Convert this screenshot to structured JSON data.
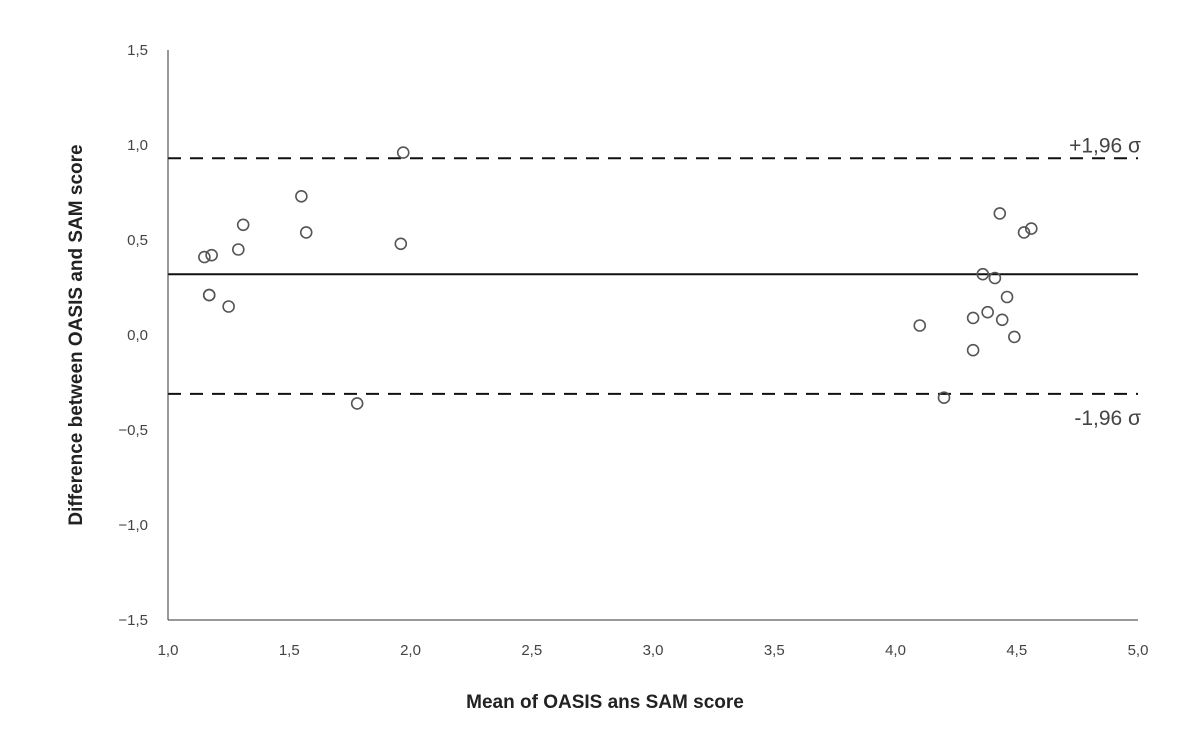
{
  "chart_data": {
    "type": "scatter",
    "xlabel": "Mean of OASIS ans SAM score",
    "ylabel": "Difference between OASIS and SAM score",
    "xlim": [
      1.0,
      5.0
    ],
    "ylim": [
      -1.5,
      1.5
    ],
    "xticks": [
      1.0,
      1.5,
      2.0,
      2.5,
      3.0,
      3.5,
      4.0,
      4.5,
      5.0
    ],
    "yticks": [
      -1.5,
      -1.0,
      -0.5,
      0.0,
      0.5,
      1.0,
      1.5
    ],
    "decimal_separator": ",",
    "grid": false,
    "legend": "none",
    "reference_lines": [
      {
        "label": "+1,96 σ",
        "y": 0.93,
        "style": "dashed"
      },
      {
        "label": "",
        "y": 0.32,
        "style": "solid"
      },
      {
        "label": "-1,96 σ",
        "y": -0.31,
        "style": "dashed"
      }
    ],
    "points": [
      {
        "x": 1.15,
        "y": 0.41
      },
      {
        "x": 1.18,
        "y": 0.42
      },
      {
        "x": 1.17,
        "y": 0.21
      },
      {
        "x": 1.17,
        "y": 0.21
      },
      {
        "x": 1.25,
        "y": 0.15
      },
      {
        "x": 1.29,
        "y": 0.45
      },
      {
        "x": 1.31,
        "y": 0.58
      },
      {
        "x": 1.55,
        "y": 0.73
      },
      {
        "x": 1.57,
        "y": 0.54
      },
      {
        "x": 1.78,
        "y": -0.36
      },
      {
        "x": 1.96,
        "y": 0.48
      },
      {
        "x": 1.97,
        "y": 0.96
      },
      {
        "x": 4.1,
        "y": 0.05
      },
      {
        "x": 4.2,
        "y": -0.33
      },
      {
        "x": 4.32,
        "y": -0.08
      },
      {
        "x": 4.32,
        "y": 0.09
      },
      {
        "x": 4.36,
        "y": 0.32
      },
      {
        "x": 4.38,
        "y": 0.12
      },
      {
        "x": 4.41,
        "y": 0.3
      },
      {
        "x": 4.43,
        "y": 0.64
      },
      {
        "x": 4.44,
        "y": 0.08
      },
      {
        "x": 4.46,
        "y": 0.2
      },
      {
        "x": 4.49,
        "y": -0.01
      },
      {
        "x": 4.53,
        "y": 0.54
      },
      {
        "x": 4.56,
        "y": 0.56
      }
    ]
  }
}
